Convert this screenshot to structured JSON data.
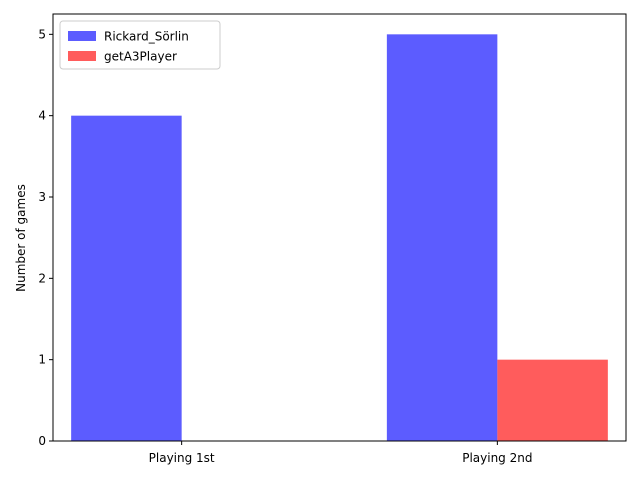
{
  "chart_data": {
    "type": "bar",
    "title": "",
    "xlabel": "",
    "ylabel": "Number of games",
    "categories": [
      "Playing 1st",
      "Playing 2nd"
    ],
    "series": [
      {
        "name": "Rickard_Sörlin",
        "values": [
          4,
          5
        ],
        "color": "#3333ff"
      },
      {
        "name": "getA3Player",
        "values": [
          0,
          1
        ],
        "color": "#ff3333"
      }
    ],
    "ylim": [
      0,
      5.25
    ],
    "yticks": [
      0,
      1,
      2,
      3,
      4,
      5
    ],
    "grid": false,
    "legend_position": "top-left"
  }
}
